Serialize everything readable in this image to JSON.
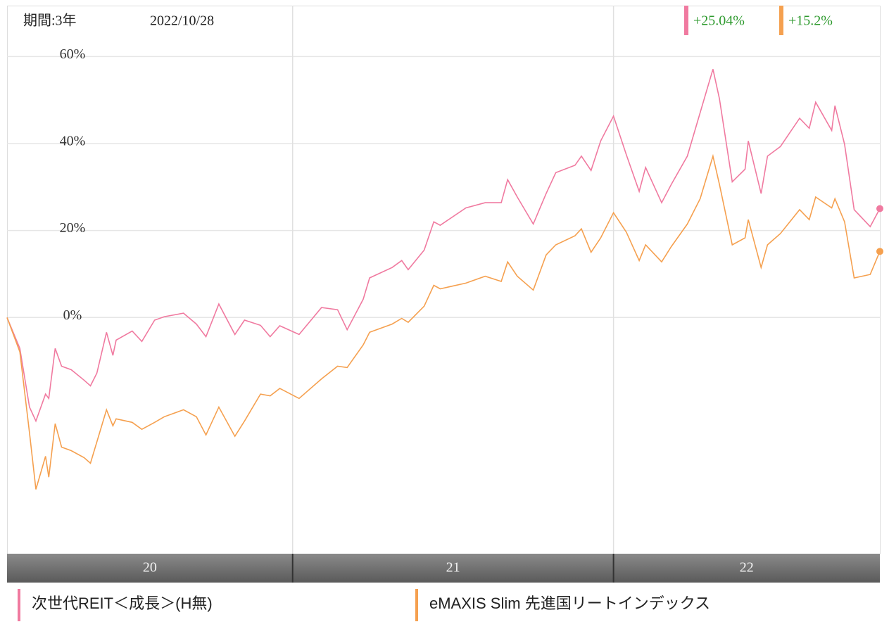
{
  "chart_data": {
    "type": "line",
    "period_label": "期間:3年",
    "date": "2022/10/28",
    "xlim": [
      2020.11,
      2022.83
    ],
    "ylim": [
      -54.3,
      71.7
    ],
    "yticks": [
      {
        "value": 0,
        "label": "0%"
      },
      {
        "value": 20,
        "label": "20%"
      },
      {
        "value": 40,
        "label": "40%"
      },
      {
        "value": 60,
        "label": "60%"
      }
    ],
    "grid": true,
    "year_bands": [
      {
        "label": "20",
        "from": 2020.11,
        "to": 2021
      },
      {
        "label": "21",
        "from": 2021,
        "to": 2022
      },
      {
        "label": "22",
        "from": 2022,
        "to": 2022.83
      }
    ],
    "x": [
      2020.11,
      2020.15,
      2020.18,
      2020.2,
      2020.23,
      2020.24,
      2020.26,
      2020.28,
      2020.31,
      2020.35,
      2020.37,
      2020.39,
      2020.42,
      2020.44,
      2020.45,
      2020.5,
      2020.53,
      2020.57,
      2020.6,
      2020.66,
      2020.7,
      2020.73,
      2020.77,
      2020.82,
      2020.85,
      2020.9,
      2020.93,
      2020.96,
      2021.02,
      2021.09,
      2021.14,
      2021.17,
      2021.22,
      2021.24,
      2021.31,
      2021.34,
      2021.36,
      2021.41,
      2021.44,
      2021.46,
      2021.54,
      2021.6,
      2021.65,
      2021.67,
      2021.7,
      2021.75,
      2021.79,
      2021.82,
      2021.88,
      2021.9,
      2021.93,
      2021.96,
      2022.0,
      2022.04,
      2022.08,
      2022.1,
      2022.15,
      2022.18,
      2022.23,
      2022.27,
      2022.31,
      2022.33,
      2022.37,
      2022.41,
      2022.42,
      2022.46,
      2022.48,
      2022.52,
      2022.58,
      2022.61,
      2022.63,
      2022.68,
      2022.69,
      2022.72,
      2022.75,
      2022.8,
      2022.83
    ],
    "series": [
      {
        "name": "次世代REIT＜成長＞(H無)",
        "color": "#f07aa0",
        "last_label": "+25.04%",
        "values": [
          0,
          -7.1,
          -20.6,
          -23.8,
          -17.6,
          -18.6,
          -7.1,
          -11.2,
          -12.0,
          -14.4,
          -15.7,
          -12.8,
          -3.4,
          -8.7,
          -5.2,
          -3.1,
          -5.5,
          -0.6,
          0.2,
          1.0,
          -1.5,
          -4.4,
          3.1,
          -3.9,
          -0.6,
          -1.8,
          -4.4,
          -1.9,
          -3.9,
          2.3,
          1.8,
          -2.8,
          4.2,
          9.1,
          11.5,
          13.1,
          11.0,
          15.5,
          22.0,
          21.2,
          25.2,
          26.4,
          26.4,
          31.7,
          27.7,
          21.5,
          28.5,
          33.3,
          35.0,
          37.1,
          33.8,
          40.6,
          46.3,
          37.4,
          29.0,
          34.5,
          26.4,
          30.6,
          37.1,
          47.1,
          57.1,
          50.3,
          31.2,
          34.1,
          40.6,
          28.5,
          37.1,
          39.3,
          45.8,
          43.5,
          49.5,
          43.0,
          48.7,
          39.8,
          24.8,
          20.9,
          25.04
        ]
      },
      {
        "name": "eMAXIS Slim 先進国リートインデックス",
        "color": "#f5a04f",
        "last_label": "+15.2%",
        "values": [
          0,
          -7.9,
          -26.5,
          -39.5,
          -31.9,
          -36.7,
          -24.4,
          -29.8,
          -30.6,
          -32.2,
          -33.5,
          -28.6,
          -21.2,
          -24.9,
          -23.3,
          -24.1,
          -25.7,
          -24.1,
          -22.8,
          -21.2,
          -22.8,
          -27.0,
          -20.6,
          -27.3,
          -23.8,
          -17.6,
          -18.0,
          -16.3,
          -18.6,
          -14.1,
          -11.2,
          -11.5,
          -6.3,
          -3.4,
          -1.5,
          -0.2,
          -1.1,
          2.6,
          7.4,
          6.6,
          7.9,
          9.5,
          8.3,
          12.8,
          9.5,
          6.3,
          14.4,
          16.7,
          18.8,
          20.4,
          15.0,
          18.3,
          24.1,
          19.6,
          13.1,
          16.7,
          12.8,
          16.3,
          21.5,
          27.3,
          37.1,
          30.6,
          16.7,
          18.3,
          22.5,
          11.5,
          16.7,
          19.3,
          24.8,
          22.5,
          27.7,
          25.2,
          27.3,
          22.0,
          9.1,
          9.9,
          15.2
        ]
      }
    ]
  }
}
